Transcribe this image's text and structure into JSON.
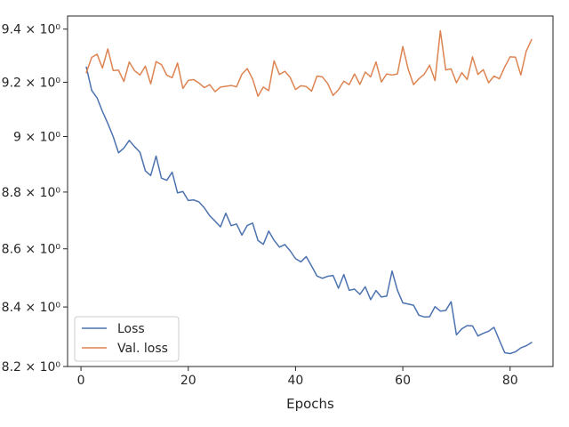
{
  "chart_data": {
    "type": "line",
    "xlabel": "Epochs",
    "ylabel": "",
    "yscale": "log",
    "xlim": [
      -2.5,
      88
    ],
    "ylim": [
      8.2,
      9.45
    ],
    "x_ticks": [
      0,
      20,
      40,
      60,
      80
    ],
    "x_tick_labels": [
      "0",
      "20",
      "40",
      "60",
      "80"
    ],
    "y_ticks": [
      8.2,
      8.4,
      8.6,
      8.8,
      9.0,
      9.2,
      9.4
    ],
    "y_tick_labels": [
      "8.2 × 10⁰",
      "8.4 × 10⁰",
      "8.6 × 10⁰",
      "8.8 × 10⁰",
      "9 × 10⁰",
      "9.2 × 10⁰",
      "9.4 × 10⁰"
    ],
    "grid": false,
    "legend_position": "lower-left",
    "x": [
      1,
      2,
      3,
      4,
      5,
      6,
      7,
      8,
      9,
      10,
      11,
      12,
      13,
      14,
      15,
      16,
      17,
      18,
      19,
      20,
      21,
      22,
      23,
      24,
      25,
      26,
      27,
      28,
      29,
      30,
      31,
      32,
      33,
      34,
      35,
      36,
      37,
      38,
      39,
      40,
      41,
      42,
      43,
      44,
      45,
      46,
      47,
      48,
      49,
      50,
      51,
      52,
      53,
      54,
      55,
      56,
      57,
      58,
      59,
      60,
      61,
      62,
      63,
      64,
      65,
      66,
      67,
      68,
      69,
      70,
      71,
      72,
      73,
      74,
      75,
      76,
      77,
      78,
      79,
      80,
      81,
      82,
      83,
      84
    ],
    "series": [
      {
        "name": "Loss",
        "color": "#4c72b0",
        "values": [
          9.256,
          9.17,
          9.142,
          9.092,
          9.048,
          9.0,
          8.941,
          8.958,
          8.986,
          8.963,
          8.943,
          8.876,
          8.859,
          8.929,
          8.85,
          8.842,
          8.871,
          8.797,
          8.802,
          8.77,
          8.772,
          8.765,
          8.744,
          8.716,
          8.697,
          8.677,
          8.725,
          8.681,
          8.687,
          8.648,
          8.682,
          8.69,
          8.629,
          8.616,
          8.662,
          8.63,
          8.606,
          8.615,
          8.593,
          8.566,
          8.555,
          8.573,
          8.54,
          8.506,
          8.498,
          8.505,
          8.508,
          8.464,
          8.511,
          8.457,
          8.461,
          8.443,
          8.469,
          8.425,
          8.456,
          8.434,
          8.437,
          8.523,
          8.457,
          8.414,
          8.41,
          8.406,
          8.372,
          8.366,
          8.367,
          8.401,
          8.386,
          8.388,
          8.418,
          8.306,
          8.326,
          8.337,
          8.336,
          8.302,
          8.311,
          8.318,
          8.331,
          8.288,
          8.246,
          8.243,
          8.249,
          8.262,
          8.269,
          8.28
        ]
      },
      {
        "name": "Val. loss",
        "color": "#dd8452",
        "values": [
          9.236,
          9.293,
          9.305,
          9.253,
          9.325,
          9.244,
          9.245,
          9.203,
          9.276,
          9.243,
          9.227,
          9.26,
          9.194,
          9.277,
          9.266,
          9.226,
          9.217,
          9.272,
          9.177,
          9.207,
          9.21,
          9.197,
          9.18,
          9.191,
          9.165,
          9.182,
          9.185,
          9.188,
          9.183,
          9.23,
          9.251,
          9.212,
          9.148,
          9.182,
          9.169,
          9.28,
          9.229,
          9.241,
          9.218,
          9.173,
          9.187,
          9.184,
          9.167,
          9.223,
          9.22,
          9.195,
          9.151,
          9.172,
          9.204,
          9.191,
          9.231,
          9.192,
          9.238,
          9.22,
          9.276,
          9.201,
          9.231,
          9.227,
          9.231,
          9.334,
          9.249,
          9.191,
          9.213,
          9.23,
          9.264,
          9.206,
          9.394,
          9.246,
          9.25,
          9.198,
          9.236,
          9.21,
          9.295,
          9.229,
          9.247,
          9.198,
          9.223,
          9.213,
          9.257,
          9.295,
          9.294,
          9.227,
          9.316,
          9.36
        ]
      }
    ]
  }
}
